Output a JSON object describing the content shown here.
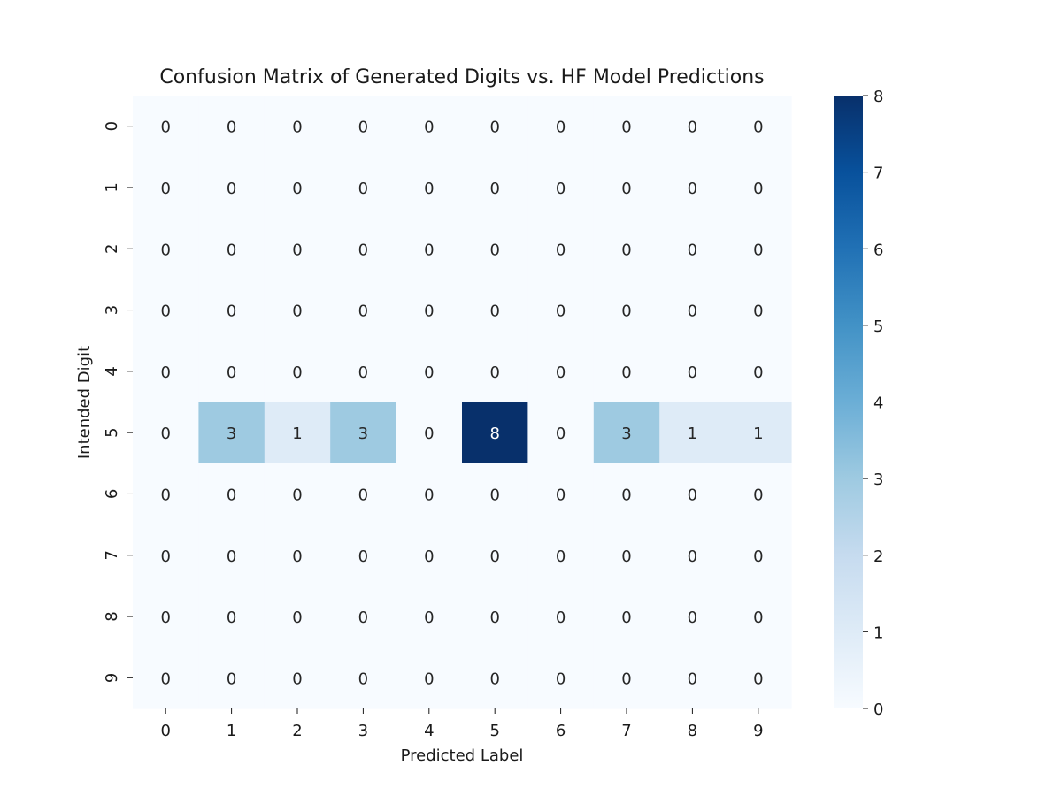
{
  "chart_data": {
    "type": "heatmap",
    "title": "Confusion Matrix of Generated Digits vs. HF Model Predictions",
    "xlabel": "Predicted Label",
    "ylabel": "Intended Digit",
    "x_categories": [
      "0",
      "1",
      "2",
      "3",
      "4",
      "5",
      "6",
      "7",
      "8",
      "9"
    ],
    "y_categories": [
      "0",
      "1",
      "2",
      "3",
      "4",
      "5",
      "6",
      "7",
      "8",
      "9"
    ],
    "values": [
      [
        0,
        0,
        0,
        0,
        0,
        0,
        0,
        0,
        0,
        0
      ],
      [
        0,
        0,
        0,
        0,
        0,
        0,
        0,
        0,
        0,
        0
      ],
      [
        0,
        0,
        0,
        0,
        0,
        0,
        0,
        0,
        0,
        0
      ],
      [
        0,
        0,
        0,
        0,
        0,
        0,
        0,
        0,
        0,
        0
      ],
      [
        0,
        0,
        0,
        0,
        0,
        0,
        0,
        0,
        0,
        0
      ],
      [
        0,
        3,
        1,
        3,
        0,
        8,
        0,
        3,
        1,
        1
      ],
      [
        0,
        0,
        0,
        0,
        0,
        0,
        0,
        0,
        0,
        0
      ],
      [
        0,
        0,
        0,
        0,
        0,
        0,
        0,
        0,
        0,
        0
      ],
      [
        0,
        0,
        0,
        0,
        0,
        0,
        0,
        0,
        0,
        0
      ],
      [
        0,
        0,
        0,
        0,
        0,
        0,
        0,
        0,
        0,
        0
      ]
    ],
    "annotations": true,
    "colormap": "Blues",
    "vmin": 0,
    "vmax": 8,
    "colorbar_ticks": [
      0,
      1,
      2,
      3,
      4,
      5,
      6,
      7,
      8
    ],
    "colors": {
      "low": "#f7fbff",
      "high": "#08306b"
    }
  }
}
